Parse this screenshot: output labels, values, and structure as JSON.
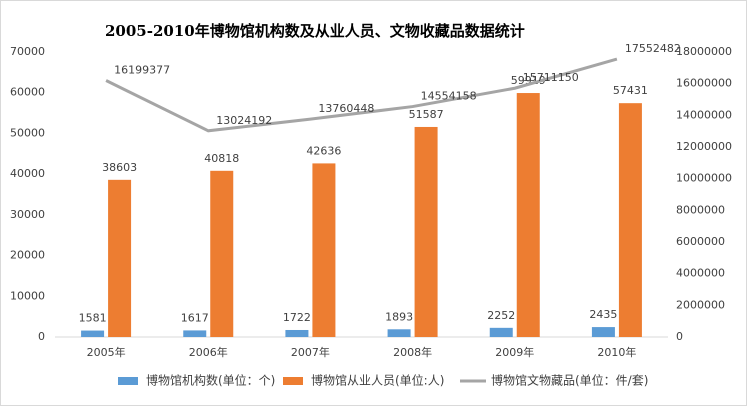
{
  "chart_data": {
    "type": "bar",
    "title": "2005-2010年博物馆机构数及从业人员、文物收藏品数据统计",
    "categories": [
      "2005年",
      "2006年",
      "2007年",
      "2008年",
      "2009年",
      "2010年"
    ],
    "series": [
      {
        "name": "博物馆机构数(单位：个)",
        "color": "#5b9bd5",
        "values": [
          1581,
          1617,
          1722,
          1893,
          2252,
          2435
        ]
      },
      {
        "name": "博物馆从业人员(单位:人)",
        "color": "#ed7d31",
        "values": [
          38603,
          40818,
          42636,
          51587,
          59919,
          57431
        ]
      },
      {
        "name": "博物馆文物藏品(单位：件/套)",
        "color": "#a5a5a5",
        "type": "line",
        "axis": "y2",
        "values": [
          16199377,
          13024192,
          13760448,
          14554158,
          15711150,
          17552482
        ]
      }
    ],
    "ylim": [
      0,
      70000
    ],
    "yticks": [
      0,
      10000,
      20000,
      30000,
      40000,
      50000,
      60000,
      70000
    ],
    "y2lim": [
      0,
      18000000
    ],
    "y2ticks": [
      0,
      2000000,
      4000000,
      6000000,
      8000000,
      10000000,
      12000000,
      14000000,
      16000000,
      18000000
    ],
    "grid": false,
    "legend": "bottom"
  }
}
